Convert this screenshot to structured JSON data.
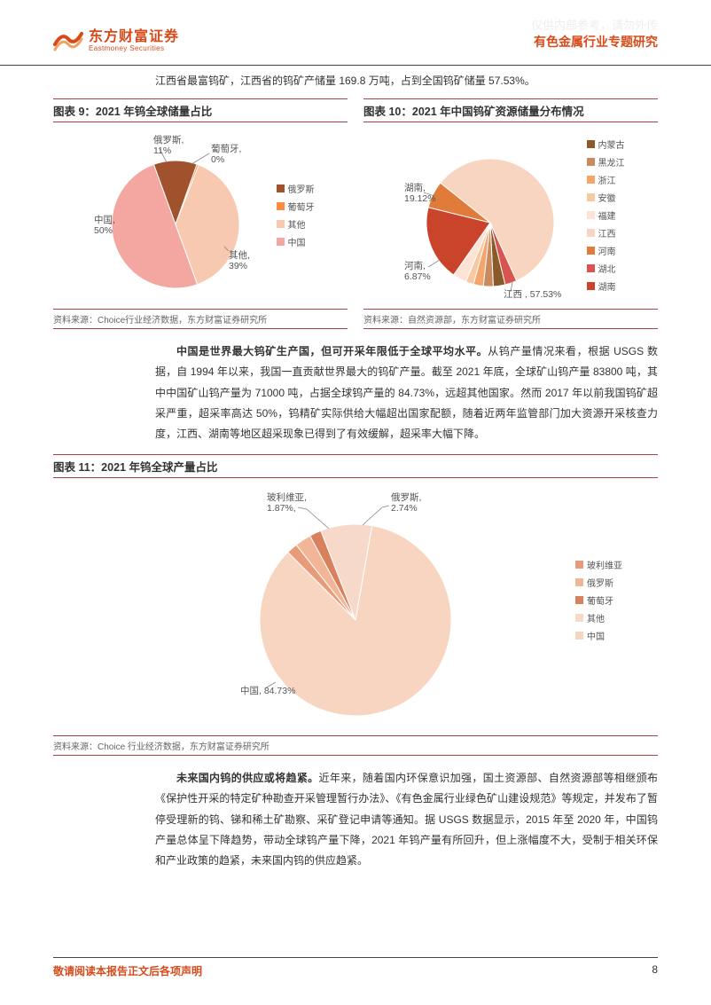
{
  "watermark": "仅供内部参考，请勿外传",
  "header": {
    "logo_cn": "东方财富证券",
    "logo_en": "Eastmoney Securities",
    "title": "有色金属行业专题研究",
    "brand_color": "#d84a1a"
  },
  "intro": "江西省最富钨矿，江西省的钨矿产储量 169.8 万吨，占到全国钨矿储量 57.53%。",
  "chart9": {
    "title": "图表 9：2021 年钨全球储量占比",
    "type": "pie",
    "source": "资料来源：Choice行业经济数据，东方财富证券研究所",
    "background_color": "#ffffff",
    "border_color": "#a44",
    "label_fontsize": 10.5,
    "slices": [
      {
        "label": "俄罗斯",
        "value": 11,
        "display": "11%",
        "color": "#a0522d"
      },
      {
        "label": "葡萄牙",
        "value": 0.5,
        "display": "0%",
        "color": "#ff8c42"
      },
      {
        "label": "其他",
        "value": 38.5,
        "display": "39%",
        "color": "#f7c9b1"
      },
      {
        "label": "中国",
        "value": 50,
        "display": "50%",
        "color": "#f4a6a0"
      }
    ],
    "legend": [
      {
        "label": "俄罗斯",
        "color": "#a0522d"
      },
      {
        "label": "葡萄牙",
        "color": "#ff8c42"
      },
      {
        "label": "其他",
        "color": "#f7c9b1"
      },
      {
        "label": "中国",
        "color": "#f4a6a0"
      }
    ]
  },
  "chart10": {
    "title": "图表 10：2021 年中国钨矿资源储量分布情况",
    "type": "pie",
    "source": "资料来源：自然资源部，东方财富证券研究所",
    "background_color": "#ffffff",
    "border_color": "#a44",
    "label_fontsize": 10.5,
    "slices": [
      {
        "label": "湖南",
        "value": 19.12,
        "display": "19.12%",
        "color": "#c9442a"
      },
      {
        "label": "河南",
        "value": 6.87,
        "display": "6.87%",
        "color": "#e07b3a"
      },
      {
        "label": "江西",
        "value": 57.53,
        "display": "57.53%",
        "color": "#f8d5c0"
      },
      {
        "label": "湖北",
        "value": 3.0,
        "display": "",
        "color": "#d9534f"
      },
      {
        "label": "内蒙古",
        "value": 3.0,
        "display": "",
        "color": "#8b5a2b"
      },
      {
        "label": "黑龙江",
        "value": 2.5,
        "display": "",
        "color": "#c98a5e"
      },
      {
        "label": "浙江",
        "value": 2.5,
        "display": "",
        "color": "#f5a46b"
      },
      {
        "label": "安徽",
        "value": 2.0,
        "display": "",
        "color": "#f7c9a0"
      },
      {
        "label": "福建",
        "value": 3.48,
        "display": "",
        "color": "#fbe4d5"
      }
    ],
    "legend": [
      {
        "label": "内蒙古",
        "color": "#8b5a2b"
      },
      {
        "label": "黑龙江",
        "color": "#c98a5e"
      },
      {
        "label": "浙江",
        "color": "#f5a46b"
      },
      {
        "label": "安徽",
        "color": "#f7c9a0"
      },
      {
        "label": "福建",
        "color": "#fbe4d5"
      },
      {
        "label": "江西",
        "color": "#f8d5c0"
      },
      {
        "label": "河南",
        "color": "#e07b3a"
      },
      {
        "label": "湖北",
        "color": "#d9534f"
      },
      {
        "label": "湖南",
        "color": "#c9442a"
      }
    ]
  },
  "para1": {
    "bold": "中国是世界最大钨矿生产国，但可开采年限低于全球平均水平。",
    "text": "从钨产量情况来看，根据 USGS 数据，自 1994 年以来，我国一直贡献世界最大的钨矿产量。截至 2021 年底，全球矿山钨产量 83800 吨，其中中国矿山钨产量为 71000 吨，占据全球钨产量的 84.73%，远超其他国家。然而 2017 年以前我国钨矿超采严重，超采率高达 50%，钨精矿实际供给大幅超出国家配额，随着近两年监管部门加大资源开采核查力度，江西、湖南等地区超采现象已得到了有效缓解，超采率大幅下降。"
  },
  "chart11": {
    "title": "图表 11：2021 年钨全球产量占比",
    "type": "pie",
    "source": "资料来源：Choice 行业经济数据，东方财富证券研究所",
    "background_color": "#ffffff",
    "border_color": "#a44",
    "label_fontsize": 10.5,
    "slices": [
      {
        "label": "玻利维亚",
        "value": 1.87,
        "display": "1.87%,",
        "color": "#e89b7a"
      },
      {
        "label": "俄罗斯",
        "value": 2.74,
        "display": "2.74%",
        "color": "#f0b697"
      },
      {
        "label": "葡萄牙",
        "value": 2.0,
        "display": "",
        "color": "#d9805c"
      },
      {
        "label": "其他",
        "value": 8.66,
        "display": "",
        "color": "#f7d9c9"
      },
      {
        "label": "中国",
        "value": 84.73,
        "display": "84.73%",
        "color": "#f8d5c0"
      }
    ],
    "legend": [
      {
        "label": "玻利维亚",
        "color": "#e89b7a"
      },
      {
        "label": "俄罗斯",
        "color": "#f0b697"
      },
      {
        "label": "葡萄牙",
        "color": "#d9805c"
      },
      {
        "label": "其他",
        "color": "#f7d9c9"
      },
      {
        "label": "中国",
        "color": "#f8d5c0"
      }
    ]
  },
  "para2": {
    "bold": "未来国内钨的供应或将趋紧。",
    "text": "近年来，随着国内环保意识加强，国土资源部、自然资源部等相继颁布《保护性开采的特定矿种勘查开采管理暂行办法》、《有色金属行业绿色矿山建设规范》等规定，并发布了暂停受理新的钨、锑和稀土矿勘察、采矿登记申请等通知。据 USGS 数据显示，2015 年至 2020 年，中国钨产量总体呈下降趋势，带动全球钨产量下降，2021 年钨产量有所回升，但上涨幅度不大，受制于相关环保和产业政策的趋紧，未来国内钨的供应趋紧。"
  },
  "footer": {
    "left": "敬请阅读本报告正文后各项声明",
    "page": "8"
  }
}
